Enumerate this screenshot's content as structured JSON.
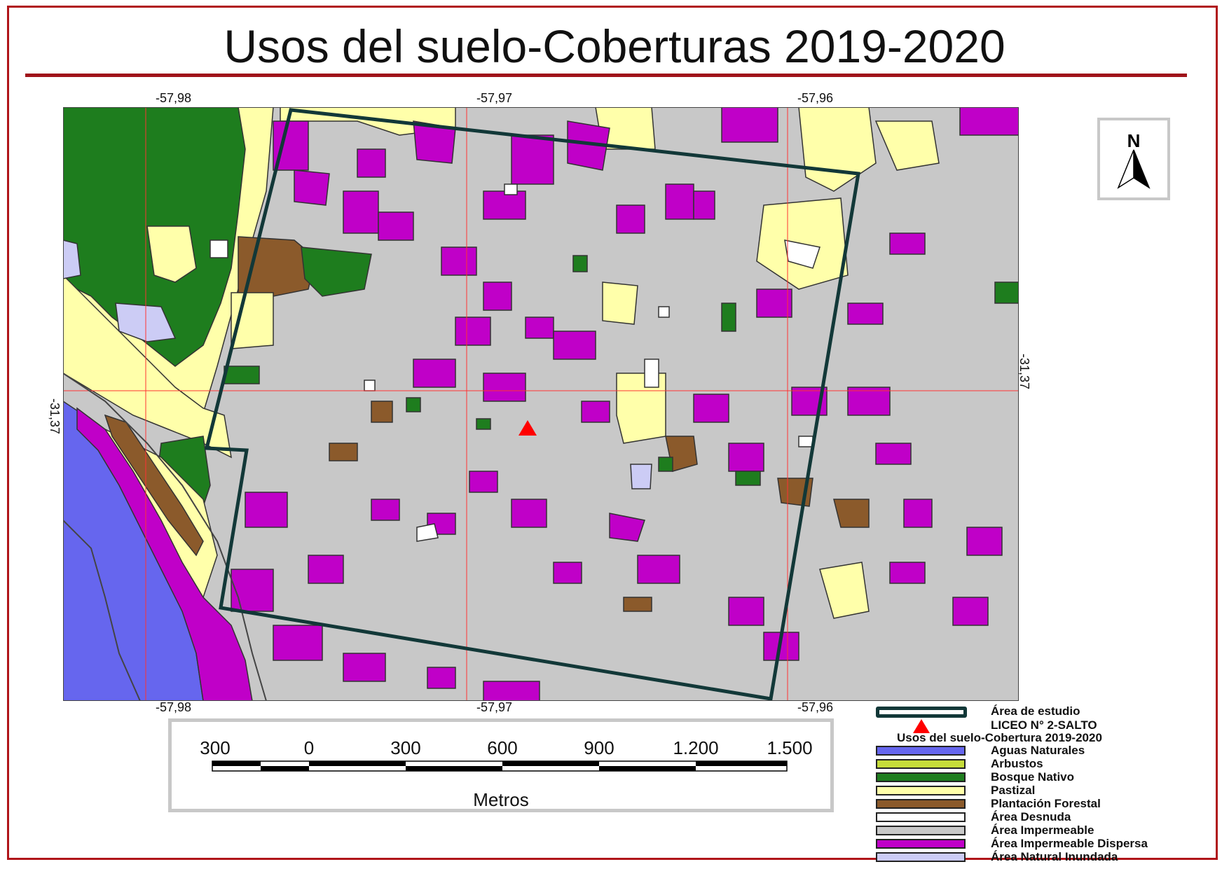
{
  "title": "Usos del suelo-Coberturas 2019-2020",
  "coords": {
    "top": [
      "-57,98",
      "-57,97",
      "-57,96"
    ],
    "bottom": [
      "-57,98",
      "-57,97",
      "-57,96"
    ],
    "left": "-31,37",
    "right": "-31,37"
  },
  "north_arrow": {
    "label": "N"
  },
  "scale_bar": {
    "labels": [
      "300",
      "0",
      "300",
      "600",
      "900",
      "1.200",
      "1.500"
    ],
    "unit": "Metros"
  },
  "legend": {
    "study_area_label": "Área de estudio",
    "point_label": "LICEO N° 2-SALTO",
    "heading": "Usos del suelo-Cobertura 2019-2020",
    "classes": [
      {
        "label": "Aguas Naturales",
        "color": "#6666ee"
      },
      {
        "label": "Arbustos",
        "color": "#c6dc3a"
      },
      {
        "label": "Bosque Nativo",
        "color": "#1e7d1e"
      },
      {
        "label": "Pastizal",
        "color": "#ffffaa"
      },
      {
        "label": "Plantación Forestal",
        "color": "#8b5a2b"
      },
      {
        "label": "Área Desnuda",
        "color": "#ffffff"
      },
      {
        "label": "Área Impermeable",
        "color": "#c8c8c8"
      },
      {
        "label": "Área Impermeable Dispersa",
        "color": "#c000c8"
      },
      {
        "label": "Área Natural Inundada",
        "color": "#ccccf5"
      }
    ]
  },
  "colors": {
    "frame": "#b0151a",
    "study_area_outline": "#123838",
    "grid": "#ff3333",
    "point_marker": "#ff0000"
  }
}
